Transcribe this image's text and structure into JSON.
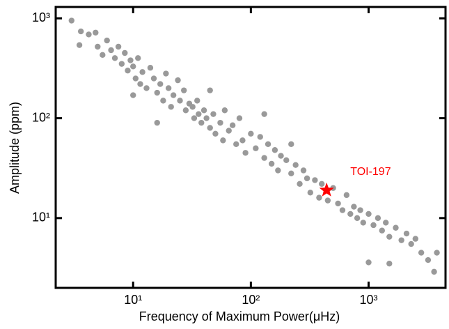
{
  "chart_data": {
    "type": "scatter",
    "log_x": true,
    "log_y": true,
    "x_label": "Frequency of Maximum Power(μHz)",
    "y_label": "Amplitude (ppm)",
    "xlim": [
      2.2,
      4500
    ],
    "ylim": [
      2,
      1300
    ],
    "xticks": [
      {
        "value": 10,
        "label": "10¹"
      },
      {
        "value": 100,
        "label": "10²"
      },
      {
        "value": 1000,
        "label": "10³"
      }
    ],
    "yticks": [
      {
        "value": 10,
        "label": "10¹"
      },
      {
        "value": 100,
        "label": "10²"
      },
      {
        "value": 1000,
        "label": "10³"
      }
    ],
    "series": [
      {
        "color": "#999999",
        "marker": "circle",
        "x": [
          3,
          3.5,
          3.6,
          4.2,
          4.8,
          5,
          5.5,
          6,
          6.5,
          7,
          7.5,
          8,
          8.5,
          9,
          9.5,
          10,
          10.5,
          11,
          11.5,
          12,
          13,
          14,
          15,
          16,
          17,
          18,
          19,
          20,
          21,
          22,
          24,
          25,
          27,
          28,
          30,
          32,
          33,
          35,
          36,
          38,
          40,
          42,
          45,
          48,
          50,
          55,
          58,
          60,
          65,
          70,
          75,
          80,
          85,
          90,
          100,
          110,
          120,
          130,
          140,
          150,
          160,
          170,
          180,
          200,
          220,
          240,
          260,
          280,
          300,
          320,
          350,
          380,
          400,
          450,
          500,
          550,
          600,
          650,
          700,
          750,
          800,
          850,
          900,
          1000,
          1100,
          1200,
          1300,
          1400,
          1500,
          1700,
          1900,
          2100,
          2300,
          2500,
          2800,
          3200,
          3600,
          3800,
          1000,
          1500,
          16,
          10,
          45,
          130,
          220
        ],
        "values": [
          950,
          540,
          740,
          690,
          720,
          520,
          430,
          600,
          480,
          400,
          520,
          350,
          450,
          300,
          380,
          330,
          250,
          400,
          220,
          290,
          200,
          320,
          250,
          180,
          220,
          150,
          280,
          200,
          130,
          170,
          240,
          150,
          190,
          120,
          140,
          130,
          100,
          150,
          110,
          90,
          120,
          100,
          80,
          110,
          70,
          90,
          60,
          120,
          75,
          85,
          55,
          100,
          60,
          45,
          70,
          50,
          65,
          40,
          55,
          35,
          48,
          30,
          42,
          38,
          28,
          34,
          22,
          30,
          25,
          18,
          24,
          16,
          22,
          15,
          20,
          14,
          12,
          17,
          11,
          13,
          10,
          12,
          9,
          11,
          8.5,
          10,
          7.5,
          9,
          6.5,
          8,
          6,
          7,
          5.5,
          6.2,
          4.5,
          3.8,
          2.9,
          4.5,
          3.6,
          3.5,
          90,
          170,
          190,
          110,
          55
        ]
      },
      {
        "name": "TOI-197",
        "color": "#ff0000",
        "marker": "star",
        "x": [
          440
        ],
        "values": [
          19
        ]
      }
    ]
  }
}
